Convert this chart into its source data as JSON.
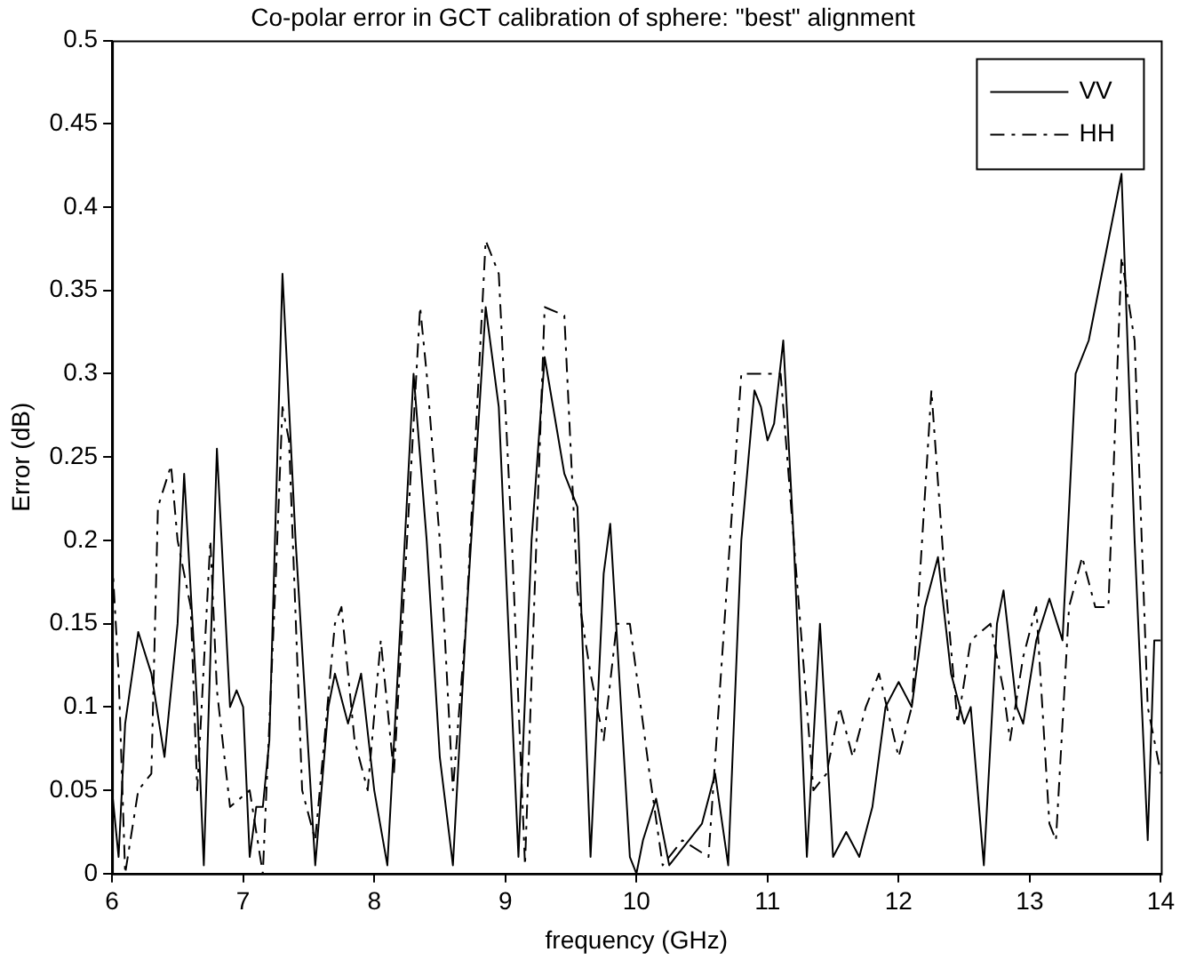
{
  "chart_data": {
    "type": "line",
    "title": "Co-polar error in GCT calibration of sphere: \"best\" alignment",
    "xlabel": "frequency (GHz)",
    "ylabel": "Error (dB)",
    "xlim": [
      6,
      14
    ],
    "xticks": [
      6,
      7,
      8,
      9,
      10,
      11,
      12,
      13,
      14
    ],
    "ylim": [
      0,
      0.5
    ],
    "yticks": [
      0,
      0.05,
      0.1,
      0.15,
      0.2,
      0.25,
      0.3,
      0.35,
      0.4,
      0.45,
      0.5
    ],
    "grid": false,
    "legend": "top right",
    "marker": "none",
    "series": [
      {
        "name": "VV",
        "color": "#000000",
        "line_style": "solid",
        "x": [
          6.0,
          6.05,
          6.1,
          6.2,
          6.3,
          6.4,
          6.5,
          6.55,
          6.65,
          6.7,
          6.8,
          6.9,
          6.95,
          7.0,
          7.05,
          7.1,
          7.15,
          7.2,
          7.3,
          7.4,
          7.5,
          7.55,
          7.65,
          7.7,
          7.8,
          7.9,
          8.0,
          8.1,
          8.2,
          8.3,
          8.4,
          8.5,
          8.6,
          8.7,
          8.85,
          8.95,
          9.05,
          9.1,
          9.2,
          9.3,
          9.45,
          9.55,
          9.65,
          9.75,
          9.8,
          9.95,
          10.0,
          10.05,
          10.15,
          10.25,
          10.4,
          10.5,
          10.6,
          10.7,
          10.8,
          10.9,
          10.95,
          11.0,
          11.05,
          11.12,
          11.2,
          11.3,
          11.4,
          11.5,
          11.6,
          11.7,
          11.8,
          11.9,
          12.0,
          12.1,
          12.2,
          12.3,
          12.4,
          12.5,
          12.55,
          12.65,
          12.75,
          12.8,
          12.9,
          12.95,
          13.05,
          13.15,
          13.25,
          13.35,
          13.45,
          13.6,
          13.7,
          13.8,
          13.9,
          13.95,
          14.0
        ],
        "values": [
          0.05,
          0.01,
          0.09,
          0.145,
          0.12,
          0.07,
          0.15,
          0.24,
          0.1,
          0.005,
          0.255,
          0.1,
          0.11,
          0.1,
          0.01,
          0.04,
          0.04,
          0.08,
          0.36,
          0.2,
          0.07,
          0.005,
          0.1,
          0.12,
          0.09,
          0.12,
          0.05,
          0.005,
          0.15,
          0.3,
          0.2,
          0.07,
          0.005,
          0.15,
          0.34,
          0.28,
          0.1,
          0.01,
          0.2,
          0.31,
          0.24,
          0.22,
          0.01,
          0.18,
          0.21,
          0.01,
          0.0,
          0.02,
          0.045,
          0.005,
          0.02,
          0.03,
          0.06,
          0.005,
          0.2,
          0.29,
          0.28,
          0.26,
          0.27,
          0.32,
          0.2,
          0.01,
          0.15,
          0.01,
          0.025,
          0.01,
          0.04,
          0.1,
          0.115,
          0.1,
          0.16,
          0.19,
          0.12,
          0.09,
          0.1,
          0.005,
          0.15,
          0.17,
          0.1,
          0.09,
          0.14,
          0.165,
          0.14,
          0.3,
          0.32,
          0.38,
          0.42,
          0.2,
          0.02,
          0.14,
          0.14
        ]
      },
      {
        "name": "HH",
        "color": "#000000",
        "line_style": "dashed",
        "x": [
          6.0,
          6.05,
          6.1,
          6.2,
          6.3,
          6.35,
          6.45,
          6.5,
          6.6,
          6.65,
          6.75,
          6.8,
          6.9,
          7.05,
          7.15,
          7.25,
          7.3,
          7.35,
          7.45,
          7.55,
          7.7,
          7.75,
          7.85,
          7.95,
          8.05,
          8.15,
          8.35,
          8.4,
          8.5,
          8.6,
          8.7,
          8.85,
          8.95,
          9.05,
          9.15,
          9.3,
          9.45,
          9.55,
          9.65,
          9.75,
          9.85,
          9.95,
          10.1,
          10.2,
          10.35,
          10.55,
          10.8,
          10.9,
          11.0,
          11.1,
          11.25,
          11.35,
          11.45,
          11.55,
          11.65,
          11.75,
          11.85,
          12.0,
          12.1,
          12.25,
          12.35,
          12.45,
          12.55,
          12.7,
          12.8,
          12.85,
          12.95,
          13.05,
          13.15,
          13.2,
          13.3,
          13.4,
          13.5,
          13.6,
          13.7,
          13.8,
          13.9,
          14.0
        ],
        "values": [
          0.19,
          0.12,
          0.0,
          0.05,
          0.06,
          0.22,
          0.245,
          0.2,
          0.16,
          0.05,
          0.2,
          0.11,
          0.04,
          0.05,
          0.0,
          0.18,
          0.28,
          0.26,
          0.05,
          0.02,
          0.15,
          0.16,
          0.08,
          0.05,
          0.14,
          0.06,
          0.34,
          0.3,
          0.2,
          0.05,
          0.15,
          0.38,
          0.36,
          0.2,
          0.005,
          0.34,
          0.335,
          0.17,
          0.12,
          0.08,
          0.15,
          0.15,
          0.06,
          0.005,
          0.02,
          0.01,
          0.3,
          0.3,
          0.3,
          0.3,
          0.15,
          0.05,
          0.06,
          0.1,
          0.07,
          0.1,
          0.12,
          0.07,
          0.1,
          0.29,
          0.18,
          0.09,
          0.14,
          0.15,
          0.11,
          0.08,
          0.13,
          0.16,
          0.03,
          0.02,
          0.16,
          0.19,
          0.16,
          0.16,
          0.37,
          0.32,
          0.1,
          0.06
        ]
      }
    ]
  }
}
